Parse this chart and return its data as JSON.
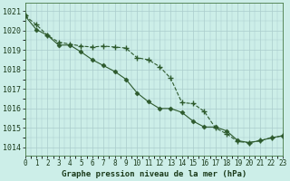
{
  "title": "Graphe pression niveau de la mer (hPa)",
  "background_color": "#cceee8",
  "grid_color": "#aacccc",
  "line_color": "#2d5a2d",
  "x_ticks": [
    0,
    1,
    2,
    3,
    4,
    5,
    6,
    7,
    8,
    9,
    10,
    11,
    12,
    13,
    14,
    15,
    16,
    17,
    18,
    19,
    20,
    21,
    22,
    23
  ],
  "y_ticks": [
    1014,
    1015,
    1016,
    1017,
    1018,
    1019,
    1020,
    1021
  ],
  "ylim": [
    1013.6,
    1021.4
  ],
  "xlim": [
    0,
    23
  ],
  "series1_x": [
    0,
    1,
    2,
    3,
    4,
    5,
    6,
    7,
    8,
    9,
    10,
    11,
    12,
    13,
    14,
    15,
    16,
    17,
    18,
    19,
    20,
    21,
    22,
    23
  ],
  "series1_y": [
    1020.75,
    1020.3,
    1019.75,
    1019.4,
    1019.3,
    1019.2,
    1019.15,
    1019.2,
    1019.15,
    1019.1,
    1018.6,
    1018.5,
    1018.15,
    1017.55,
    1016.3,
    1016.25,
    1015.85,
    1015.0,
    1014.7,
    1014.3,
    1014.25,
    1014.35,
    1014.5,
    1014.6
  ],
  "series2_x": [
    0,
    1,
    2,
    3,
    4,
    5,
    6,
    7,
    8,
    9,
    10,
    11,
    12,
    13,
    14,
    15,
    16,
    17,
    18,
    19,
    20,
    21,
    22,
    23
  ],
  "series2_y": [
    1020.75,
    1020.05,
    1019.75,
    1019.25,
    1019.25,
    1018.9,
    1018.5,
    1018.2,
    1017.9,
    1017.5,
    1016.8,
    1016.35,
    1016.0,
    1016.0,
    1015.8,
    1015.35,
    1015.05,
    1015.05,
    1014.85,
    1014.35,
    1014.25,
    1014.35,
    1014.5,
    1014.6
  ],
  "title_fontsize": 6.5,
  "tick_fontsize": 5.5,
  "ytick_fontsize": 6
}
